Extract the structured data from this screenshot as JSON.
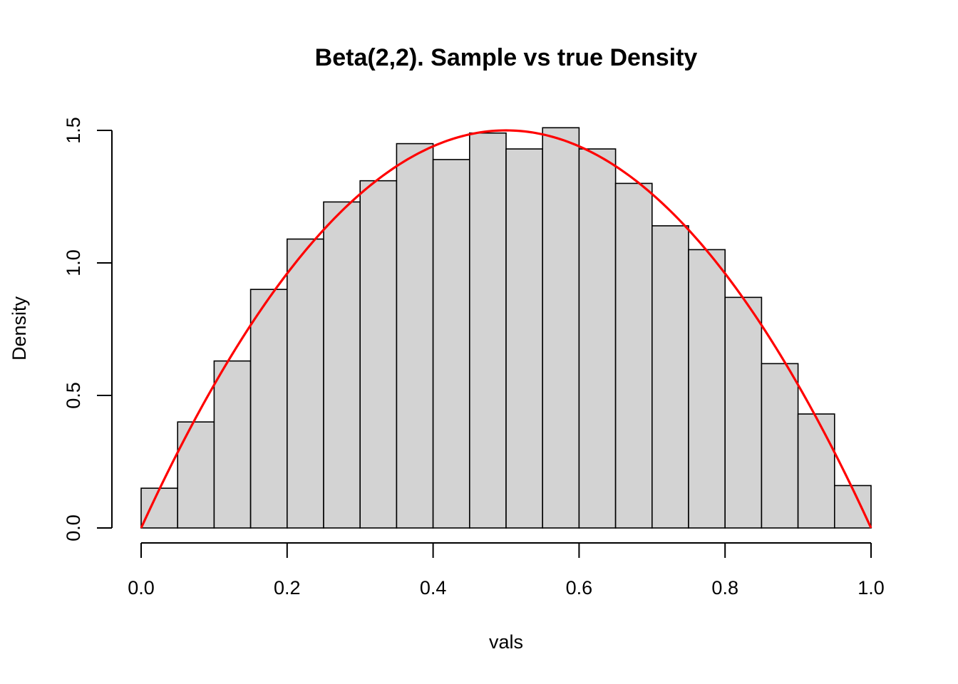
{
  "chart_data": {
    "type": "bar",
    "title": "Beta(2,2). Sample vs true Density",
    "xlabel": "vals",
    "ylabel": "Density",
    "xlim": [
      0.0,
      1.0
    ],
    "ylim": [
      0.0,
      1.5
    ],
    "x_ticks": [
      "0.0",
      "0.2",
      "0.4",
      "0.6",
      "0.8",
      "1.0"
    ],
    "y_ticks": [
      "0.0",
      "0.5",
      "1.0",
      "1.5"
    ],
    "bins": {
      "breaks": [
        0.0,
        0.05,
        0.1,
        0.15,
        0.2,
        0.25,
        0.3,
        0.35,
        0.4,
        0.45,
        0.5,
        0.55,
        0.6,
        0.65,
        0.7,
        0.75,
        0.8,
        0.85,
        0.9,
        0.95,
        1.0
      ],
      "densities": [
        0.15,
        0.4,
        0.63,
        0.9,
        1.09,
        1.23,
        1.31,
        1.45,
        1.39,
        1.49,
        1.43,
        1.51,
        1.43,
        1.3,
        1.14,
        1.05,
        0.87,
        0.62,
        0.43,
        0.16
      ]
    },
    "series": [
      {
        "kind": "histogram",
        "fill": "#d3d3d3",
        "stroke": "#000000"
      },
      {
        "kind": "line",
        "formula": "6*x*(1-x)",
        "color": "#ff0000"
      }
    ],
    "grid": false
  }
}
